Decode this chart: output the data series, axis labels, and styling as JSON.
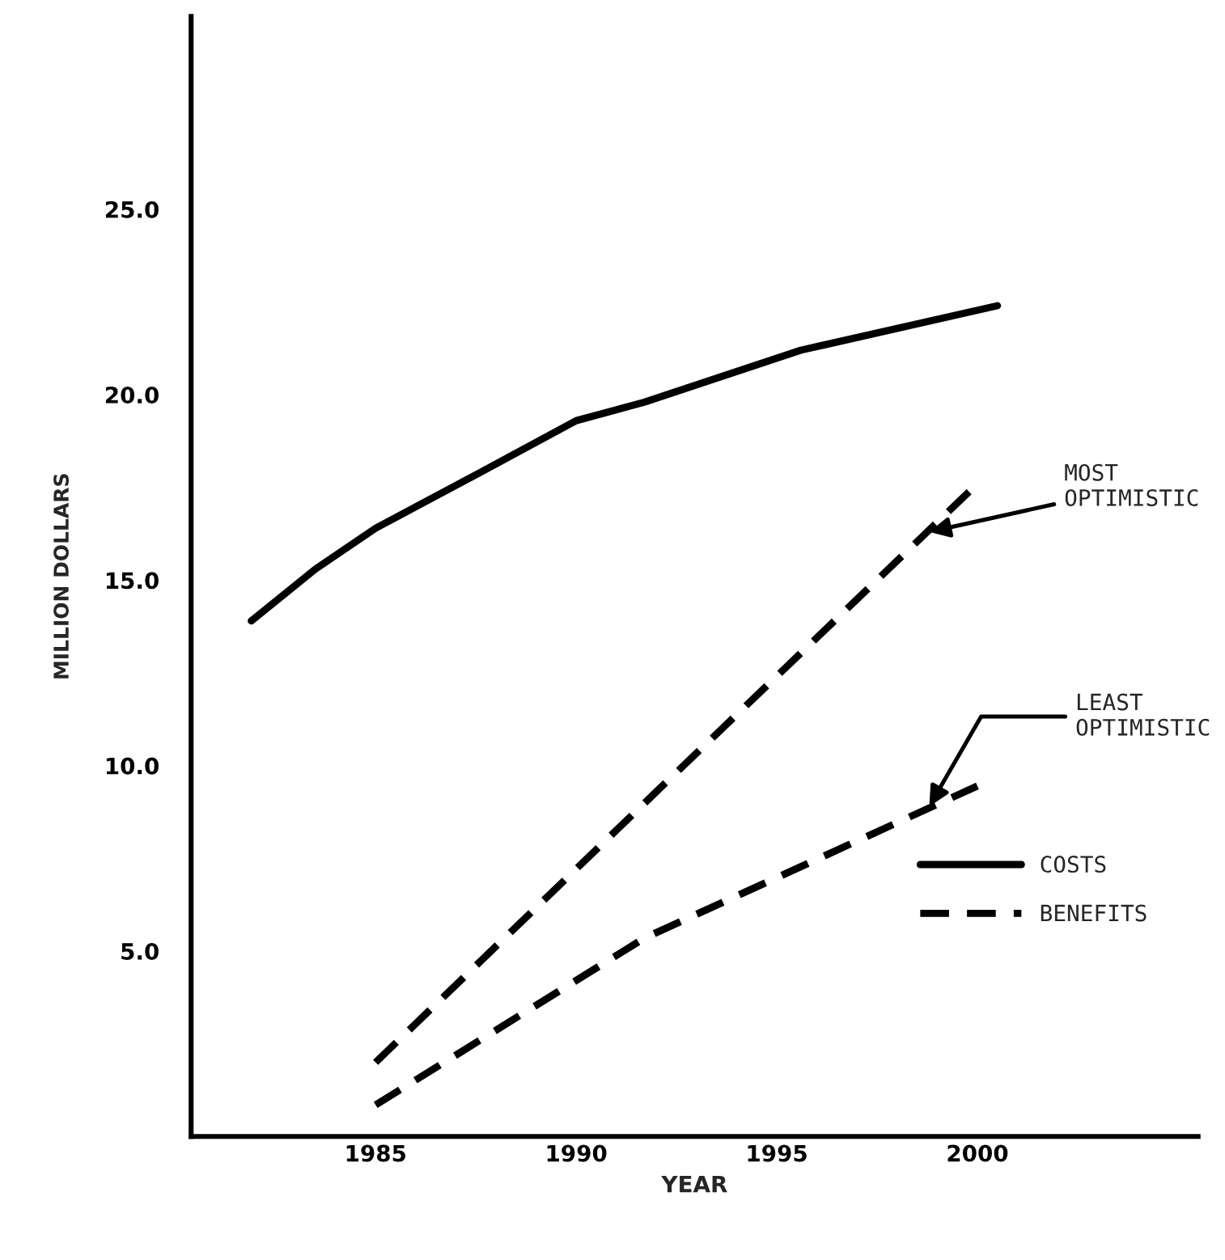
{
  "chart_data": {
    "type": "line",
    "xlabel": "YEAR",
    "ylabel": "MILLION DOLLARS",
    "series": [
      {
        "name": "COSTS",
        "color": "#000000",
        "line_style": "solid",
        "x": [
          1981.9,
          1983.5,
          1985,
          1987.6,
          1990,
          1991.7,
          1995.6,
          2000.5
        ],
        "values": [
          13.9,
          15.3,
          16.4,
          17.9,
          19.3,
          19.8,
          21.2,
          22.4
        ]
      },
      {
        "name": "BENEFITS",
        "color": "#000000",
        "line_style": "dashed",
        "x": [
          1985,
          1992,
          2000
        ],
        "values": [
          2.0,
          9.3,
          17.6
        ]
      },
      {
        "color": "#000000",
        "line_style": "dashed",
        "x": [
          1985,
          1991.7,
          2000
        ],
        "values": [
          0.85,
          5.35,
          9.45
        ]
      }
    ],
    "annotations": [
      {
        "text": "MOST\nOPTIMISTIC",
        "x": 1998.8,
        "y": 16.3
      },
      {
        "text": "LEAST\nOPTIMISTIC",
        "x": 1998.8,
        "y": 8.9
      }
    ],
    "xlim": [
      1980.4,
      2005.5
    ],
    "ylim": [
      0,
      30.2
    ],
    "xticks": [
      1985,
      1990,
      1995,
      2000
    ],
    "yticks": [
      {
        "value": 5,
        "label": "5.0"
      },
      {
        "value": 10,
        "label": "10.0"
      },
      {
        "value": 15,
        "label": "15.0"
      },
      {
        "value": 20,
        "label": "20.0"
      },
      {
        "value": 25,
        "label": "25.0"
      }
    ],
    "grid": false,
    "legend": "bottom right",
    "marker": "none"
  }
}
